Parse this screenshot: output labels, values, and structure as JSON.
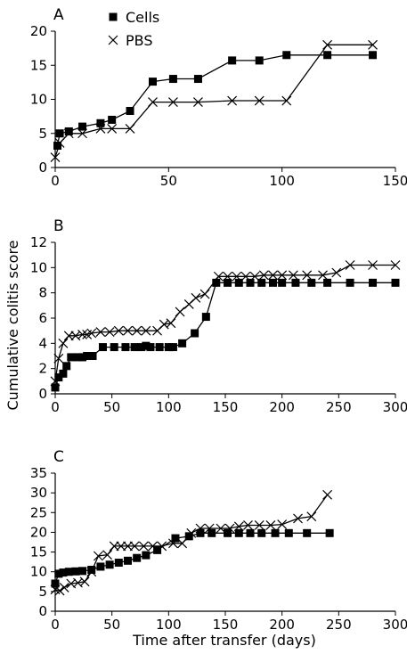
{
  "figure": {
    "ylabel": "Cumulative colitis score",
    "xlabel": "Time after transfer (days)"
  },
  "chart_data": [
    {
      "type": "line",
      "panel_label": "A",
      "xlim": [
        0,
        150
      ],
      "ylim": [
        0,
        20
      ],
      "xticks": [
        "0",
        "50",
        "100",
        "150"
      ],
      "yticks": [
        "0",
        "5",
        "10",
        "15",
        "20"
      ],
      "legend": {
        "placement": "top-left",
        "entries": [
          "Cells",
          "PBS"
        ]
      },
      "series": [
        {
          "name": "Cells",
          "marker": "square",
          "x": [
            1,
            2,
            6,
            12,
            20,
            25,
            33,
            43,
            52,
            63,
            78,
            90,
            102,
            120,
            140
          ],
          "y": [
            3.2,
            5.0,
            5.3,
            6.0,
            6.5,
            7.0,
            8.3,
            12.6,
            13.0,
            13.0,
            15.7,
            15.7,
            16.5,
            16.5,
            16.5
          ]
        },
        {
          "name": "PBS",
          "marker": "cross",
          "x": [
            0,
            2,
            6,
            12,
            20,
            25,
            33,
            43,
            52,
            63,
            78,
            90,
            102,
            120,
            140
          ],
          "y": [
            1.5,
            3.6,
            5.0,
            5.0,
            5.7,
            5.7,
            5.7,
            9.6,
            9.6,
            9.6,
            9.8,
            9.8,
            9.8,
            18.0,
            18.0
          ]
        }
      ]
    },
    {
      "type": "line",
      "panel_label": "B",
      "xlim": [
        0,
        300
      ],
      "ylim": [
        0,
        12
      ],
      "xticks": [
        "0",
        "50",
        "100",
        "150",
        "200",
        "250",
        "300"
      ],
      "yticks": [
        "0",
        "2",
        "4",
        "6",
        "8",
        "10",
        "12"
      ],
      "series": [
        {
          "name": "Cells",
          "marker": "square",
          "x": [
            0,
            3,
            7,
            10,
            14,
            20,
            24,
            28,
            33,
            42,
            52,
            62,
            70,
            76,
            80,
            84,
            92,
            100,
            104,
            112,
            123,
            133,
            142,
            152,
            162,
            172,
            182,
            192,
            200,
            212,
            226,
            240,
            260,
            280,
            300
          ],
          "y": [
            0.5,
            1.3,
            1.6,
            2.2,
            2.9,
            2.9,
            2.9,
            3.0,
            3.0,
            3.7,
            3.7,
            3.7,
            3.7,
            3.7,
            3.8,
            3.7,
            3.7,
            3.7,
            3.7,
            4.0,
            4.8,
            6.1,
            8.8,
            8.8,
            8.8,
            8.8,
            8.8,
            8.8,
            8.8,
            8.8,
            8.8,
            8.8,
            8.8,
            8.8,
            8.8
          ]
        },
        {
          "name": "PBS",
          "marker": "cross",
          "x": [
            0,
            3,
            7,
            12,
            18,
            24,
            28,
            32,
            40,
            48,
            56,
            64,
            72,
            80,
            90,
            96,
            102,
            110,
            118,
            124,
            132,
            144,
            152,
            160,
            168,
            176,
            184,
            192,
            200,
            210,
            222,
            236,
            248,
            260,
            280,
            300
          ],
          "y": [
            1.0,
            2.8,
            4.0,
            4.6,
            4.6,
            4.7,
            4.7,
            4.8,
            4.9,
            4.9,
            5.0,
            5.0,
            5.0,
            5.0,
            5.0,
            5.5,
            5.6,
            6.5,
            7.1,
            7.6,
            7.9,
            9.3,
            9.3,
            9.3,
            9.3,
            9.3,
            9.4,
            9.4,
            9.4,
            9.4,
            9.4,
            9.4,
            9.6,
            10.2,
            10.2,
            10.2
          ]
        }
      ]
    },
    {
      "type": "line",
      "panel_label": "C",
      "xlim": [
        0,
        300
      ],
      "ylim": [
        0,
        35
      ],
      "xticks": [
        "0",
        "50",
        "100",
        "150",
        "200",
        "250",
        "300"
      ],
      "yticks": [
        "0",
        "5",
        "10",
        "15",
        "20",
        "25",
        "30",
        "35"
      ],
      "series": [
        {
          "name": "Cells",
          "marker": "square",
          "x": [
            0,
            3,
            7,
            12,
            18,
            24,
            32,
            40,
            48,
            56,
            64,
            72,
            80,
            90,
            106,
            118,
            128,
            138,
            152,
            162,
            172,
            182,
            194,
            206,
            222,
            242
          ],
          "y": [
            7.0,
            9.5,
            9.8,
            10.0,
            10.1,
            10.2,
            10.5,
            11.3,
            11.8,
            12.3,
            12.8,
            13.5,
            14.2,
            15.5,
            18.5,
            19.0,
            19.8,
            19.8,
            19.8,
            19.8,
            19.8,
            19.8,
            19.8,
            19.8,
            19.8,
            19.8
          ]
        },
        {
          "name": "PBS",
          "marker": "cross",
          "x": [
            0,
            4,
            8,
            14,
            20,
            26,
            32,
            38,
            46,
            52,
            58,
            64,
            70,
            78,
            86,
            94,
            104,
            112,
            120,
            128,
            136,
            146,
            154,
            162,
            170,
            180,
            190,
            200,
            214,
            226,
            240
          ],
          "y": [
            5.5,
            5.2,
            6.0,
            7.0,
            7.2,
            7.5,
            10.0,
            14.0,
            14.3,
            16.5,
            16.5,
            16.5,
            16.5,
            16.5,
            16.5,
            16.5,
            17.2,
            17.2,
            19.8,
            21.0,
            21.0,
            21.0,
            21.0,
            21.5,
            21.8,
            21.8,
            21.8,
            22.0,
            23.5,
            24.0,
            29.5
          ]
        }
      ]
    }
  ]
}
